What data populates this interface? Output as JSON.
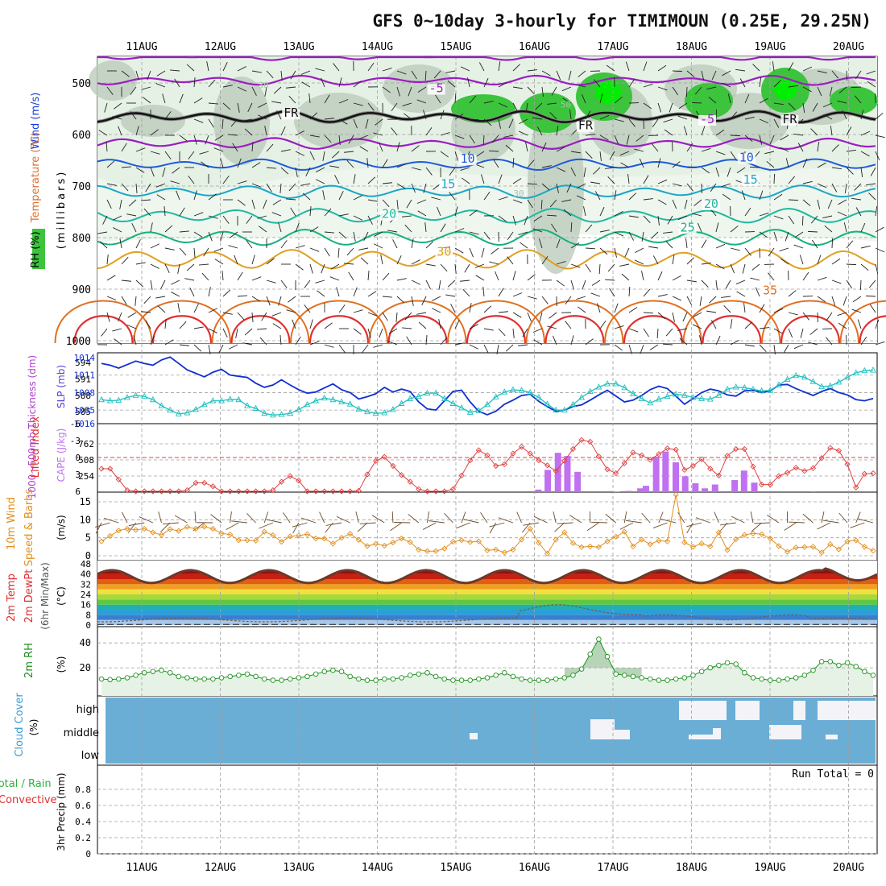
{
  "title": "GFS 0~10day 3-hourly for TIMIMOUN (0.25E, 29.25N)",
  "dates": [
    "11AUG",
    "12AUG",
    "13AUG",
    "14AUG",
    "15AUG",
    "16AUG",
    "17AUG",
    "18AUG",
    "19AUG",
    "20AUG"
  ],
  "colors": {
    "rh_green": "#3cc43c",
    "rh_bright": "#00ee00",
    "rh_gray": "#a8c4a8",
    "freezing": "#111111",
    "cold": "#9a1fc0",
    "t10": "#1e5ad8",
    "t15": "#1aa6c8",
    "t20": "#20b8a0",
    "t25": "#18b080",
    "t30": "#e0a020",
    "t35": "#e07020",
    "t40": "#e03030",
    "slp": "#1030d0",
    "thickness": "#20c0c0",
    "li": "#e04040",
    "cape": "#c070f0",
    "wind10": "#e09020",
    "barb": "#6a4a2a",
    "rh2m": "#209020",
    "rh2m_fill": "#e6f2e6",
    "cloud": "#6aaed6",
    "cloud_white": "#f4f4f8",
    "grid": "#a0a0a0"
  },
  "panel1": {
    "ylabel_wind": "Wind (m/s)",
    "ylabel_temp": "Temperature (°C)",
    "ylabel_rh": "RH (%)",
    "ylabel_p": "(millibars)",
    "pressure_ticks": [
      500,
      600,
      700,
      800,
      900,
      1000
    ],
    "isotherm_labels": [
      {
        "text": "-5",
        "color_key": "cold",
        "day": 3.75,
        "p": 518
      },
      {
        "text": "-5",
        "color_key": "cold",
        "day": 7.2,
        "p": 578
      },
      {
        "text": "FR",
        "color_key": "freezing",
        "day": 1.9,
        "p": 566
      },
      {
        "text": "FR",
        "color_key": "freezing",
        "day": 5.65,
        "p": 590
      },
      {
        "text": "FR",
        "color_key": "freezing",
        "day": 8.25,
        "p": 578
      },
      {
        "text": "10",
        "color_key": "t10",
        "day": 4.15,
        "p": 655
      },
      {
        "text": "10",
        "color_key": "t10",
        "day": 7.7,
        "p": 652
      },
      {
        "text": "15",
        "color_key": "t15",
        "day": 3.9,
        "p": 704
      },
      {
        "text": "15",
        "color_key": "t15",
        "day": 7.75,
        "p": 695
      },
      {
        "text": "20",
        "color_key": "t20",
        "day": 3.15,
        "p": 762
      },
      {
        "text": "20",
        "color_key": "t20",
        "day": 7.25,
        "p": 742
      },
      {
        "text": "25",
        "color_key": "t25",
        "day": 6.95,
        "p": 788
      },
      {
        "text": "30",
        "color_key": "t30",
        "day": 3.85,
        "p": 835
      },
      {
        "text": "35",
        "color_key": "t35",
        "day": 8.0,
        "p": 910
      },
      {
        "text": "30",
        "color_key": "rh_gray",
        "day": 1.55,
        "p": 510
      },
      {
        "text": "30",
        "color_key": "rh_gray",
        "day": 4.8,
        "p": 720
      },
      {
        "text": "50",
        "color_key": "rh_gray",
        "day": 5.4,
        "p": 548
      },
      {
        "text": "50",
        "color_key": "rh_gray",
        "day": 5.5,
        "p": 612
      }
    ]
  },
  "panel2": {
    "ylabel": "1000~500mb Thickness (dm)",
    "ylabel_r": "SLP (mb)",
    "thickness_ticks": [
      "594",
      "591",
      "588",
      "585"
    ],
    "slp_ticks": [
      "1014",
      "1011",
      "1008",
      "1005",
      "1016"
    ],
    "slp": [
      1013.0,
      1012.7,
      1012.2,
      1012.8,
      1013.4,
      1013.0,
      1012.7,
      1013.6,
      1014.1,
      1013.0,
      1011.9,
      1011.3,
      1010.7,
      1011.5,
      1012.0,
      1011.0,
      1010.8,
      1010.6,
      1009.6,
      1008.9,
      1009.3,
      1010.2,
      1009.3,
      1008.5,
      1007.9,
      1008.1,
      1008.8,
      1009.5,
      1008.5,
      1008.0,
      1006.9,
      1007.3,
      1007.8,
      1008.9,
      1008.1,
      1008.6,
      1008.2,
      1006.4,
      1005.2,
      1005.0,
      1006.6,
      1008.2,
      1008.4,
      1006.4,
      1004.8,
      1004.2,
      1004.8,
      1006.0,
      1006.7,
      1007.5,
      1007.7,
      1006.5,
      1005.6,
      1004.8,
      1005.0,
      1005.6,
      1005.9,
      1006.7,
      1007.6,
      1008.4,
      1007.4,
      1006.4,
      1006.7,
      1007.5,
      1008.5,
      1009.1,
      1008.7,
      1007.4,
      1006.0,
      1007.0,
      1008.0,
      1008.6,
      1008.3,
      1007.6,
      1007.4,
      1008.3,
      1008.4,
      1008.0,
      1008.3,
      1009.3,
      1009.4,
      1008.7,
      1008.1,
      1007.5,
      1008.2,
      1008.7,
      1008.0,
      1007.6,
      1006.8,
      1006.6,
      1007.0
    ],
    "thickness": [
      587.2,
      587.0,
      587.1,
      587.6,
      588.0,
      587.8,
      587.2,
      586.1,
      585.3,
      584.6,
      584.8,
      585.4,
      586.3,
      587.0,
      587.0,
      587.3,
      587.2,
      586.1,
      585.6,
      584.7,
      584.4,
      584.5,
      584.7,
      585.4,
      586.3,
      587.0,
      587.5,
      587.2,
      586.8,
      586.4,
      585.5,
      585.0,
      584.7,
      584.8,
      585.4,
      586.5,
      587.4,
      587.8,
      588.4,
      588.4,
      587.4,
      586.5,
      585.7,
      584.9,
      585.2,
      586.3,
      587.7,
      588.6,
      589.0,
      588.9,
      588.5,
      587.6,
      586.4,
      585.3,
      585.3,
      586.3,
      587.6,
      588.7,
      589.5,
      590.1,
      590.1,
      589.4,
      588.3,
      587.4,
      586.6,
      587.3,
      587.8,
      588.2,
      588.0,
      587.6,
      587.4,
      587.3,
      588.0,
      589.1,
      589.5,
      589.4,
      589.1,
      588.8,
      588.9,
      589.9,
      590.9,
      591.6,
      591.3,
      590.5,
      589.6,
      589.7,
      590.4,
      591.3,
      592.1,
      592.5,
      592.6
    ]
  },
  "panel3": {
    "ylabel": "Lifted Index",
    "ylabel_r": "CAPE (J/kg)",
    "li_ticks": [
      "-3",
      "0",
      "3",
      "6",
      "-6"
    ],
    "cape_ticks": [
      "762",
      "508",
      "254"
    ],
    "lifted_index": [
      2.0,
      2.0,
      3.9,
      5.8,
      6.8,
      6.9,
      6.8,
      6.7,
      6.7,
      6.3,
      5.8,
      4.5,
      4.5,
      5.1,
      6.7,
      7.1,
      6.9,
      6.6,
      6.8,
      7.3,
      5.8,
      4.3,
      3.3,
      4.1,
      6.3,
      6.8,
      6.7,
      6.8,
      6.7,
      7.2,
      5.9,
      3.0,
      0.6,
      -0.1,
      1.5,
      3.1,
      4.3,
      5.6,
      7.4,
      7.4,
      6.8,
      5.6,
      3.2,
      0.5,
      -1.3,
      -0.4,
      1.5,
      1.2,
      -0.7,
      -1.9,
      -0.7,
      0.5,
      1.4,
      2.4,
      0.6,
      -1.5,
      -3.1,
      -2.8,
      -0.2,
      2.1,
      2.8,
      1.0,
      -0.9,
      -0.4,
      0.4,
      -0.6,
      -1.6,
      -1.4,
      2.2,
      1.5,
      0.3,
      2.0,
      3.2,
      -0.3,
      -1.5,
      -1.5,
      1.6,
      4.8,
      4.8,
      3.3,
      2.7,
      1.8,
      2.4,
      1.9,
      0.1,
      -1.7,
      -1.2,
      1.2,
      5.3,
      2.9,
      2.8
    ],
    "cape_bars": [
      {
        "day": 5.05,
        "val": 40
      },
      {
        "day": 5.17,
        "val": 350
      },
      {
        "day": 5.3,
        "val": 620
      },
      {
        "day": 5.42,
        "val": 570
      },
      {
        "day": 5.55,
        "val": 320
      },
      {
        "day": 6.05,
        "val": 10
      },
      {
        "day": 6.2,
        "val": 20
      },
      {
        "day": 6.35,
        "val": 60
      },
      {
        "day": 6.42,
        "val": 100
      },
      {
        "day": 6.55,
        "val": 560
      },
      {
        "day": 6.67,
        "val": 640
      },
      {
        "day": 6.8,
        "val": 470
      },
      {
        "day": 6.92,
        "val": 250
      },
      {
        "day": 7.05,
        "val": 140
      },
      {
        "day": 7.17,
        "val": 60
      },
      {
        "day": 7.3,
        "val": 120
      },
      {
        "day": 7.55,
        "val": 190
      },
      {
        "day": 7.67,
        "val": 340
      },
      {
        "day": 7.8,
        "val": 150
      },
      {
        "day": 8.55,
        "val": 15
      },
      {
        "day": 9.55,
        "val": 30
      },
      {
        "day": 9.67,
        "val": 55
      }
    ]
  },
  "panel4": {
    "ylabel": "10m Wind",
    "ylabel2": "Speed & Barbs",
    "ylabel_r": "(m/s)",
    "speed_ticks": [
      "15",
      "10",
      "5",
      "0"
    ],
    "speed": [
      4.0,
      5.5,
      7.0,
      7.5,
      7.2,
      7.5,
      6.5,
      5.8,
      7.4,
      6.9,
      8.0,
      7.5,
      8.1,
      7.5,
      6.2,
      5.9,
      4.3,
      4.3,
      4.2,
      6.7,
      5.7,
      3.9,
      5.4,
      5.6,
      6.0,
      4.8,
      4.8,
      3.4,
      5.0,
      6.1,
      4.4,
      2.7,
      3.3,
      2.8,
      3.7,
      4.8,
      3.8,
      1.7,
      1.3,
      1.3,
      2.0,
      3.9,
      4.3,
      3.8,
      4.0,
      1.5,
      1.7,
      0.9,
      1.7,
      4.5,
      7.5,
      3.6,
      0.6,
      4.5,
      6.5,
      3.5,
      2.4,
      2.6,
      2.4,
      4.0,
      5.3,
      6.7,
      2.6,
      4.5,
      3.2,
      4.2,
      4.0,
      17.0,
      3.7,
      2.5,
      3.4,
      2.6,
      6.5,
      1.6,
      4.6,
      5.8,
      6.2,
      6.0,
      4.8,
      2.7,
      1.1,
      2.3,
      2.4,
      2.5,
      0.9,
      3.2,
      1.8,
      4.0,
      4.3,
      2.5,
      1.4
    ]
  },
  "panel5": {
    "ylabel": "2m Temp",
    "ylabel2": "2m DewPt",
    "ylabel3": "(6hr Min/Max)",
    "ylabel_r": "(°C)",
    "temp_ticks": [
      "48",
      "40",
      "32",
      "24",
      "16",
      "8",
      "0"
    ]
  },
  "panel6": {
    "ylabel": "2m RH",
    "ylabel_r": "(%)",
    "rh_ticks": [
      "40",
      "20"
    ],
    "rh": [
      11,
      10.5,
      11,
      12,
      14,
      16,
      17,
      18,
      16,
      13,
      12,
      11,
      11,
      11,
      12,
      13,
      14,
      15,
      13,
      11,
      10,
      10,
      11,
      12,
      13,
      15,
      17,
      18,
      17,
      13,
      11,
      10,
      10,
      11,
      11,
      12,
      14,
      15,
      16,
      13,
      11,
      10,
      10,
      10,
      11,
      12,
      14,
      16,
      13,
      11,
      10,
      10,
      10,
      11,
      12,
      14,
      19,
      31,
      43,
      29,
      15,
      14,
      13,
      12,
      11,
      10,
      10,
      11,
      12,
      14,
      17,
      20,
      22,
      24,
      23,
      16,
      12,
      11,
      10,
      10,
      11,
      12,
      14,
      18,
      25,
      25,
      22,
      24,
      21,
      17,
      14
    ]
  },
  "panel7": {
    "ylabel": "Cloud Cover",
    "ylabel_r": "(%)",
    "levels": [
      "high",
      "middle",
      "low"
    ]
  },
  "panel8": {
    "ylabel": "Total / Rain",
    "ylabel2": "Convective",
    "ylabel_r": "3hr Precip (mm)",
    "run_total": "Run Total = 0",
    "precip_ticks": [
      "0.8",
      "0.6",
      "0.4",
      "0.2",
      "0"
    ]
  }
}
